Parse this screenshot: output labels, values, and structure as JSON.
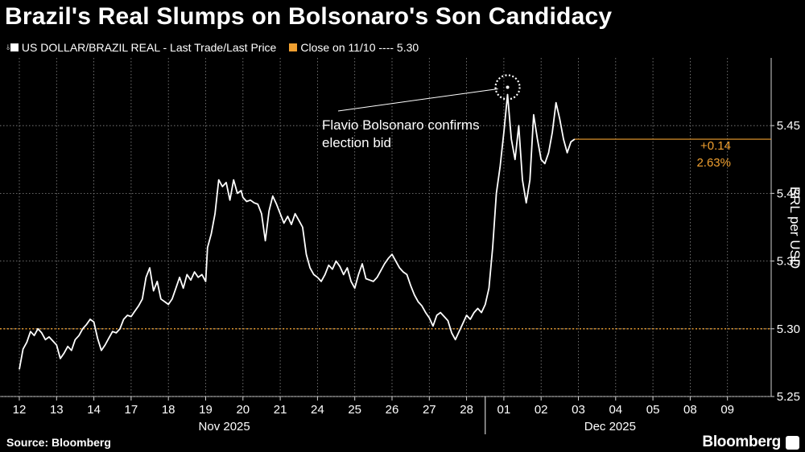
{
  "header": {
    "title": "Brazil's Real Slumps on Bolsonaro's Son Candidacy",
    "legend_series": "US DOLLAR/BRAZIL REAL - Last Trade/Last Price",
    "legend_ref": "Close on 11/10 ---- 5.30"
  },
  "footer": {
    "source": "Source: Bloomberg",
    "brand": "Bloomberg"
  },
  "colors": {
    "series": "#ffffff",
    "reference": "#f0a030",
    "grid": "#8a8a8a",
    "background": "#000000"
  },
  "chart_data": {
    "type": "line",
    "title": "Brazil's Real Slumps on Bolsonaro's Son Candidacy",
    "ylabel": "BRL per USD",
    "ylim": [
      5.25,
      5.5
    ],
    "yticks": [
      "5.25",
      "5.30",
      "5.35",
      "5.40",
      "5.45"
    ],
    "x_ticks": [
      "12",
      "13",
      "14",
      "17",
      "18",
      "19",
      "20",
      "21",
      "24",
      "25",
      "26",
      "27",
      "28",
      "01",
      "02",
      "03",
      "04",
      "05",
      "08",
      "09"
    ],
    "month_labels": [
      "Nov 2025",
      "Dec 2025"
    ],
    "grid": "vertical and horizontal dotted",
    "legend_placement": "top-left",
    "reference_line": {
      "name": "Close on 11/10",
      "value": 5.3
    },
    "annotation": {
      "text_line1": "Flavio Bolsonaro confirms",
      "text_line2": "election bid"
    },
    "change_label": {
      "abs": "+0.14",
      "pct": "2.63%"
    },
    "series": [
      {
        "name": "US DOLLAR/BRAZIL REAL - Last Trade/Last Price",
        "values": [
          [
            0,
            5.27
          ],
          [
            0.1,
            5.285
          ],
          [
            0.2,
            5.29
          ],
          [
            0.3,
            5.298
          ],
          [
            0.4,
            5.295
          ],
          [
            0.5,
            5.3
          ],
          [
            0.6,
            5.297
          ],
          [
            0.7,
            5.292
          ],
          [
            0.8,
            5.294
          ],
          [
            0.9,
            5.291
          ],
          [
            1.0,
            5.288
          ],
          [
            1.1,
            5.278
          ],
          [
            1.2,
            5.282
          ],
          [
            1.3,
            5.287
          ],
          [
            1.4,
            5.284
          ],
          [
            1.5,
            5.292
          ],
          [
            1.6,
            5.295
          ],
          [
            1.7,
            5.3
          ],
          [
            1.8,
            5.303
          ],
          [
            1.9,
            5.307
          ],
          [
            2.0,
            5.305
          ],
          [
            2.1,
            5.293
          ],
          [
            2.2,
            5.284
          ],
          [
            2.3,
            5.288
          ],
          [
            2.4,
            5.293
          ],
          [
            2.5,
            5.298
          ],
          [
            2.6,
            5.297
          ],
          [
            2.7,
            5.3
          ],
          [
            2.8,
            5.307
          ],
          [
            2.9,
            5.31
          ],
          [
            3.0,
            5.309
          ],
          [
            3.1,
            5.313
          ],
          [
            3.2,
            5.317
          ],
          [
            3.3,
            5.322
          ],
          [
            3.4,
            5.338
          ],
          [
            3.5,
            5.345
          ],
          [
            3.6,
            5.328
          ],
          [
            3.7,
            5.335
          ],
          [
            3.8,
            5.322
          ],
          [
            3.9,
            5.32
          ],
          [
            4.0,
            5.318
          ],
          [
            4.1,
            5.322
          ],
          [
            4.2,
            5.33
          ],
          [
            4.3,
            5.338
          ],
          [
            4.4,
            5.33
          ],
          [
            4.5,
            5.34
          ],
          [
            4.6,
            5.336
          ],
          [
            4.7,
            5.342
          ],
          [
            4.8,
            5.338
          ],
          [
            4.9,
            5.34
          ],
          [
            5.0,
            5.335
          ],
          [
            5.05,
            5.36
          ],
          [
            5.15,
            5.37
          ],
          [
            5.25,
            5.385
          ],
          [
            5.35,
            5.41
          ],
          [
            5.45,
            5.405
          ],
          [
            5.55,
            5.408
          ],
          [
            5.65,
            5.395
          ],
          [
            5.75,
            5.41
          ],
          [
            5.85,
            5.4
          ],
          [
            5.95,
            5.402
          ],
          [
            6.0,
            5.397
          ],
          [
            6.1,
            5.394
          ],
          [
            6.2,
            5.395
          ],
          [
            6.3,
            5.393
          ],
          [
            6.4,
            5.392
          ],
          [
            6.5,
            5.385
          ],
          [
            6.6,
            5.365
          ],
          [
            6.7,
            5.387
          ],
          [
            6.8,
            5.398
          ],
          [
            6.9,
            5.392
          ],
          [
            7.0,
            5.385
          ],
          [
            7.1,
            5.378
          ],
          [
            7.2,
            5.383
          ],
          [
            7.3,
            5.377
          ],
          [
            7.4,
            5.385
          ],
          [
            7.5,
            5.38
          ],
          [
            7.6,
            5.375
          ],
          [
            7.7,
            5.355
          ],
          [
            7.8,
            5.345
          ],
          [
            7.9,
            5.34
          ],
          [
            8.0,
            5.338
          ],
          [
            8.1,
            5.335
          ],
          [
            8.2,
            5.34
          ],
          [
            8.3,
            5.347
          ],
          [
            8.4,
            5.344
          ],
          [
            8.5,
            5.35
          ],
          [
            8.6,
            5.346
          ],
          [
            8.7,
            5.34
          ],
          [
            8.8,
            5.345
          ],
          [
            8.9,
            5.335
          ],
          [
            9.0,
            5.33
          ],
          [
            9.1,
            5.34
          ],
          [
            9.2,
            5.348
          ],
          [
            9.3,
            5.337
          ],
          [
            9.4,
            5.336
          ],
          [
            9.5,
            5.335
          ],
          [
            9.6,
            5.338
          ],
          [
            9.7,
            5.343
          ],
          [
            9.8,
            5.348
          ],
          [
            9.9,
            5.352
          ],
          [
            10.0,
            5.355
          ],
          [
            10.1,
            5.35
          ],
          [
            10.2,
            5.345
          ],
          [
            10.3,
            5.342
          ],
          [
            10.4,
            5.34
          ],
          [
            10.5,
            5.332
          ],
          [
            10.6,
            5.325
          ],
          [
            10.7,
            5.32
          ],
          [
            10.8,
            5.317
          ],
          [
            10.9,
            5.312
          ],
          [
            11.0,
            5.308
          ],
          [
            11.1,
            5.302
          ],
          [
            11.2,
            5.31
          ],
          [
            11.3,
            5.312
          ],
          [
            11.4,
            5.309
          ],
          [
            11.5,
            5.306
          ],
          [
            11.6,
            5.297
          ],
          [
            11.7,
            5.292
          ],
          [
            11.8,
            5.298
          ],
          [
            11.9,
            5.304
          ],
          [
            12.0,
            5.31
          ],
          [
            12.1,
            5.307
          ],
          [
            12.2,
            5.312
          ],
          [
            12.3,
            5.315
          ],
          [
            12.4,
            5.312
          ],
          [
            12.5,
            5.318
          ],
          [
            12.6,
            5.33
          ],
          [
            12.7,
            5.36
          ],
          [
            12.8,
            5.4
          ],
          [
            12.9,
            5.42
          ],
          [
            13.0,
            5.445
          ],
          [
            13.1,
            5.473
          ],
          [
            13.2,
            5.44
          ],
          [
            13.3,
            5.425
          ],
          [
            13.4,
            5.45
          ],
          [
            13.5,
            5.41
          ],
          [
            13.6,
            5.393
          ],
          [
            13.7,
            5.41
          ],
          [
            13.8,
            5.458
          ],
          [
            13.9,
            5.44
          ],
          [
            14.0,
            5.425
          ],
          [
            14.1,
            5.422
          ],
          [
            14.2,
            5.43
          ],
          [
            14.3,
            5.445
          ],
          [
            14.4,
            5.467
          ],
          [
            14.5,
            5.455
          ],
          [
            14.6,
            5.44
          ],
          [
            14.7,
            5.43
          ],
          [
            14.8,
            5.438
          ],
          [
            14.9,
            5.44
          ]
        ]
      }
    ]
  }
}
